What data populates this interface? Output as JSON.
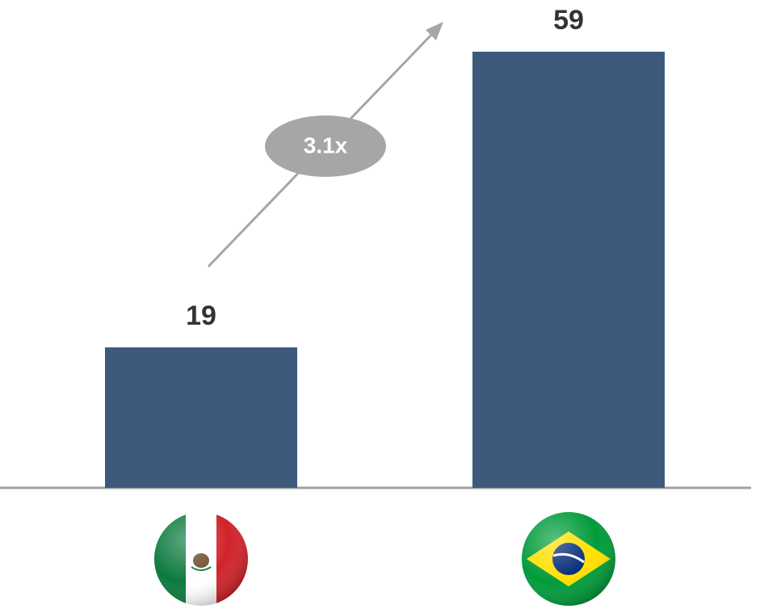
{
  "chart_data": {
    "type": "bar",
    "categories": [
      null,
      null
    ],
    "values": [
      19,
      59
    ],
    "color": "#3d5a7c",
    "annotation": "3.1x"
  }
}
